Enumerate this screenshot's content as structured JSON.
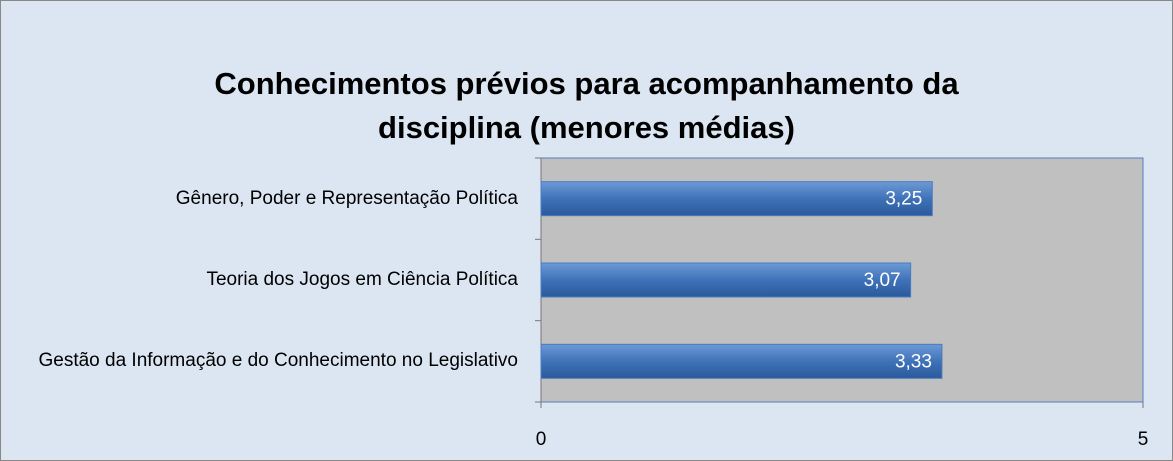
{
  "chart_data": {
    "type": "bar",
    "orientation": "horizontal",
    "title": "Conhecimentos prévios para acompanhamento da disciplina (menores médias)",
    "categories": [
      "Gênero, Poder e Representação Política",
      "Teoria dos Jogos em Ciência Política",
      "Gestão da Informação e do Conhecimento no Legislativo"
    ],
    "values": [
      3.25,
      3.07,
      3.33
    ],
    "value_labels": [
      "3,25",
      "3,07",
      "3,33"
    ],
    "color": "#3f72b8",
    "xlim": [
      0,
      5
    ],
    "xticks": [
      0,
      5
    ]
  }
}
